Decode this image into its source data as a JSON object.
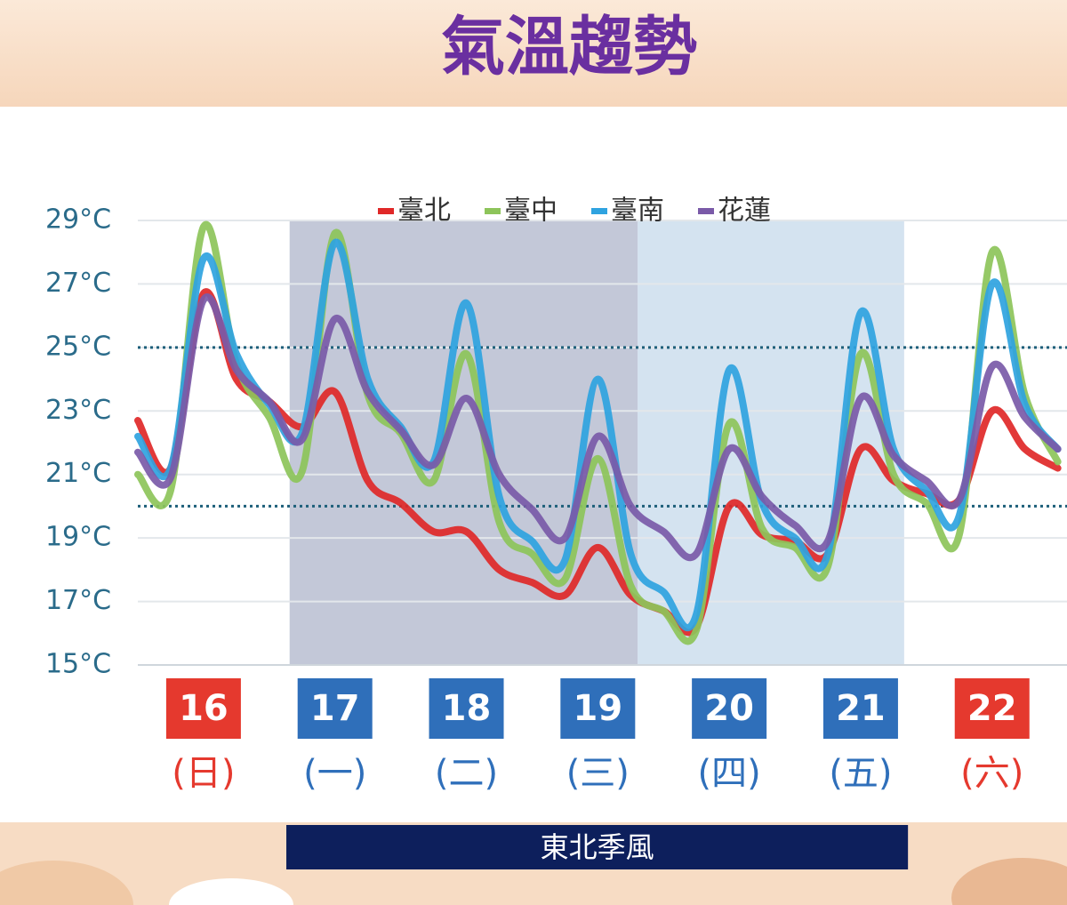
{
  "chart_data": {
    "type": "line",
    "title": "氣溫趨勢",
    "x": [
      15.5,
      15.75,
      16,
      16.25,
      16.5,
      16.75,
      17,
      17.25,
      17.5,
      17.75,
      18,
      18.25,
      18.5,
      18.75,
      19,
      19.25,
      19.5,
      19.75,
      20,
      20.25,
      20.5,
      20.75,
      21,
      21.25,
      21.5,
      21.75,
      22,
      22.25,
      22.5
    ],
    "series": [
      {
        "name": "臺北",
        "color": "#e02828",
        "values": [
          22.7,
          21.2,
          26.7,
          24.0,
          23.3,
          22.5,
          23.6,
          20.8,
          20.1,
          19.2,
          19.2,
          18.0,
          17.6,
          17.2,
          18.7,
          17.2,
          16.7,
          16.2,
          20.0,
          19.1,
          18.9,
          18.5,
          21.8,
          20.8,
          20.4,
          20.2,
          23.0,
          21.8,
          21.2
        ]
      },
      {
        "name": "臺中",
        "color": "#8dc45a",
        "values": [
          21.0,
          20.5,
          28.8,
          24.5,
          22.8,
          21.1,
          28.6,
          23.5,
          22.3,
          20.8,
          24.8,
          19.5,
          18.5,
          17.7,
          21.5,
          17.5,
          16.7,
          16.1,
          22.6,
          19.3,
          18.7,
          18.1,
          24.8,
          21.0,
          20.1,
          19.1,
          28.0,
          23.5,
          21.4
        ]
      },
      {
        "name": "臺南",
        "color": "#2fa3e0",
        "values": [
          22.2,
          21.2,
          27.8,
          24.8,
          23.2,
          22.3,
          28.3,
          24.0,
          22.5,
          21.4,
          26.4,
          20.3,
          18.9,
          18.3,
          24.0,
          18.5,
          17.3,
          16.6,
          24.3,
          20.1,
          19.0,
          18.5,
          26.1,
          21.8,
          20.5,
          19.7,
          27.0,
          23.2,
          21.8
        ]
      },
      {
        "name": "花蓮",
        "color": "#7a5aa8",
        "values": [
          21.7,
          20.9,
          26.5,
          24.3,
          23.3,
          22.1,
          25.9,
          23.6,
          22.4,
          21.3,
          23.4,
          21.0,
          19.9,
          19.0,
          22.2,
          20.0,
          19.2,
          18.5,
          21.8,
          20.3,
          19.4,
          18.9,
          23.4,
          21.6,
          20.8,
          20.2,
          24.4,
          22.8,
          21.8
        ]
      }
    ],
    "xlim": [
      15.5,
      22.57
    ],
    "xticks": [
      16,
      17,
      18,
      19,
      20,
      21,
      22
    ],
    "weekdays": [
      "(日)",
      "(一)",
      "(二)",
      "(三)",
      "(四)",
      "(五)",
      "(六)"
    ],
    "xtick_colors": [
      "#e5392e",
      "#2f6fba",
      "#2f6fba",
      "#2f6fba",
      "#2f6fba",
      "#2f6fba",
      "#e5392e"
    ],
    "ylim": [
      15,
      29
    ],
    "yticks": [
      {
        "value": 15,
        "label": "15°C"
      },
      {
        "value": 17,
        "label": "17°C"
      },
      {
        "value": 19,
        "label": "19°C"
      },
      {
        "value": 21,
        "label": "21°C"
      },
      {
        "value": 23,
        "label": "23°C"
      },
      {
        "value": 25,
        "label": "25°C"
      },
      {
        "value": 27,
        "label": "27°C"
      },
      {
        "value": 29,
        "label": "29°C"
      }
    ],
    "grid": true,
    "reference_lines": [
      25,
      20
    ],
    "shaded_regions": [
      {
        "xlim": [
          16.655,
          19.304
        ],
        "color": "#c3c8d8"
      },
      {
        "xlim": [
          19.304,
          21.331
        ],
        "color": "#d4e3f0"
      }
    ],
    "annotation": {
      "text": "東北季風",
      "xlim": [
        16.63,
        21.36
      ]
    }
  }
}
